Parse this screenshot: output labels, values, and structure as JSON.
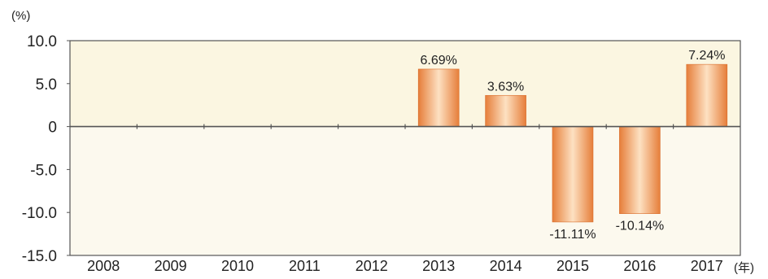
{
  "chart_data": {
    "type": "bar",
    "categories": [
      "2008",
      "2009",
      "2010",
      "2011",
      "2012",
      "2013",
      "2014",
      "2015",
      "2016",
      "2017"
    ],
    "values": [
      null,
      null,
      null,
      null,
      null,
      6.69,
      3.63,
      -11.11,
      -10.14,
      7.24
    ],
    "data_labels": [
      "",
      "",
      "",
      "",
      "",
      "6.69%",
      "3.63%",
      "-11.11%",
      "-10.14%",
      "7.24%"
    ],
    "y_unit": "(%)",
    "x_unit": "(年)",
    "y_ticks": [
      "10.0",
      "5.0",
      "0",
      "-5.0",
      "-10.0",
      "-15.0"
    ],
    "y_tick_values": [
      10,
      5,
      0,
      -5,
      -10,
      -15
    ],
    "ylim": [
      -15,
      10
    ],
    "grid": false,
    "colors": {
      "plot_positive": "#fbf6e1",
      "plot_negative": "#fcf9ee",
      "bar_edge": "#e67e3a",
      "bar_center": "#fde1c2",
      "axis": "#555555"
    }
  }
}
